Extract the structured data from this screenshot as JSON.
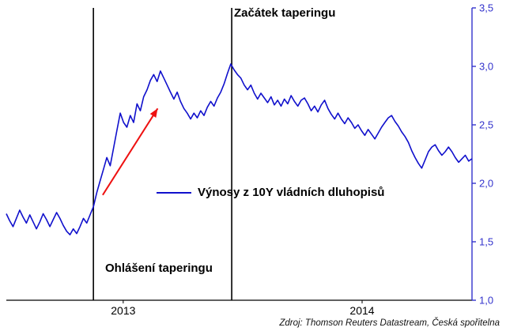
{
  "chart_data": {
    "type": "line",
    "title": "",
    "series": [
      {
        "name": "Výnosy z 10Y vládních dluhopisů",
        "color": "#1010cc",
        "values": [
          1.74,
          1.68,
          1.63,
          1.7,
          1.77,
          1.71,
          1.66,
          1.73,
          1.67,
          1.61,
          1.67,
          1.74,
          1.69,
          1.63,
          1.69,
          1.75,
          1.7,
          1.64,
          1.59,
          1.56,
          1.61,
          1.57,
          1.63,
          1.7,
          1.66,
          1.73,
          1.8,
          1.92,
          2.02,
          2.12,
          2.22,
          2.15,
          2.3,
          2.45,
          2.6,
          2.52,
          2.48,
          2.58,
          2.52,
          2.68,
          2.62,
          2.74,
          2.8,
          2.88,
          2.93,
          2.87,
          2.96,
          2.9,
          2.84,
          2.78,
          2.72,
          2.78,
          2.7,
          2.64,
          2.6,
          2.55,
          2.6,
          2.56,
          2.62,
          2.58,
          2.65,
          2.7,
          2.66,
          2.73,
          2.78,
          2.85,
          2.94,
          3.02,
          2.97,
          2.93,
          2.9,
          2.84,
          2.8,
          2.84,
          2.77,
          2.72,
          2.77,
          2.73,
          2.69,
          2.74,
          2.67,
          2.71,
          2.66,
          2.72,
          2.68,
          2.75,
          2.7,
          2.66,
          2.71,
          2.73,
          2.68,
          2.62,
          2.66,
          2.61,
          2.67,
          2.71,
          2.64,
          2.59,
          2.55,
          2.6,
          2.55,
          2.51,
          2.56,
          2.52,
          2.47,
          2.5,
          2.45,
          2.41,
          2.46,
          2.42,
          2.38,
          2.43,
          2.48,
          2.52,
          2.56,
          2.58,
          2.53,
          2.49,
          2.44,
          2.4,
          2.35,
          2.28,
          2.22,
          2.17,
          2.13,
          2.2,
          2.27,
          2.31,
          2.33,
          2.28,
          2.24,
          2.27,
          2.31,
          2.27,
          2.22,
          2.18,
          2.21,
          2.24,
          2.19,
          2.21
        ]
      }
    ],
    "y_axis": {
      "side": "right",
      "min": 1.0,
      "max": 3.5,
      "color": "#3333cc",
      "ticks": [
        {
          "value": 1.0,
          "label": "1,0"
        },
        {
          "value": 1.5,
          "label": "1,5"
        },
        {
          "value": 2.0,
          "label": "2,0"
        },
        {
          "value": 2.5,
          "label": "2,5"
        },
        {
          "value": 3.0,
          "label": "3,0"
        },
        {
          "value": 3.5,
          "label": "3,5"
        }
      ]
    },
    "x_axis": {
      "color": "#000000",
      "labels": [
        {
          "pos": 0.251,
          "label": "2013"
        },
        {
          "pos": 0.764,
          "label": "2014"
        }
      ]
    },
    "event_lines": [
      {
        "pos": 0.187,
        "name": "ohlaseni-taperingu"
      },
      {
        "pos": 0.484,
        "name": "zacatek-taperingu"
      }
    ],
    "annotations": {
      "top": "Začátek taperingu",
      "bottom": "Ohlášení taperingu"
    },
    "arrow": {
      "x1": 0.207,
      "y1": 1.9,
      "x2": 0.325,
      "y2": 2.64,
      "color": "#ee1111"
    },
    "legend": {
      "label": "Výnosy z 10Y vládních dluhopisů"
    },
    "source": "Zdroj: Thomson Reuters Datastream, Česká spořitelna"
  }
}
